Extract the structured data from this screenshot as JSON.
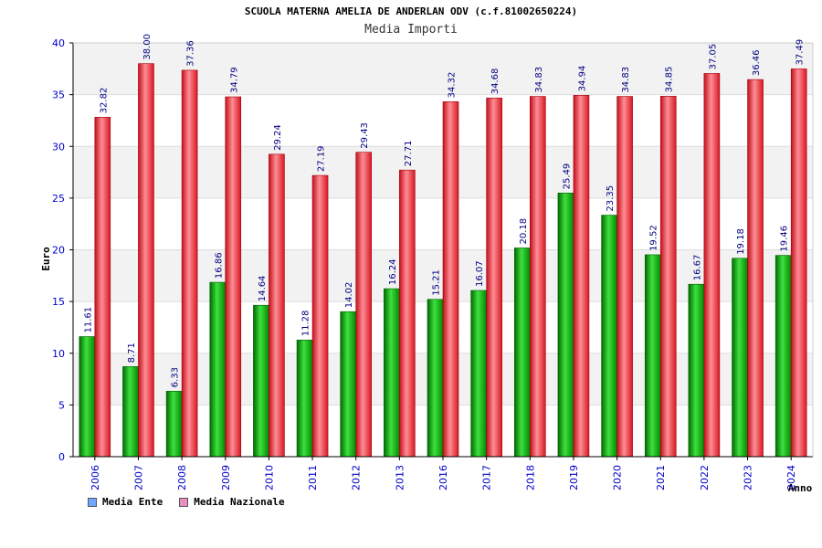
{
  "chart_data": {
    "type": "bar",
    "title": "SCUOLA MATERNA AMELIA DE ANDERLAN ODV (c.f.81002650224)",
    "subtitle": "Media Importi",
    "ylabel": "Euro",
    "xlabel": "Anno",
    "ylim": [
      0,
      40
    ],
    "yticks": [
      0,
      5,
      10,
      15,
      20,
      25,
      30,
      35,
      40
    ],
    "grid": true,
    "categories": [
      "2006",
      "2007",
      "2008",
      "2009",
      "2010",
      "2011",
      "2012",
      "2013",
      "2016",
      "2017",
      "2018",
      "2019",
      "2020",
      "2021",
      "2022",
      "2023",
      "2024"
    ],
    "series": [
      {
        "name": "Media Ente",
        "color": "#00b000",
        "legend_color": "#6fa8ff",
        "values": [
          11.61,
          8.71,
          6.33,
          16.86,
          14.64,
          11.28,
          14.02,
          16.24,
          15.21,
          16.07,
          20.18,
          25.49,
          23.35,
          19.52,
          16.67,
          19.18,
          19.46
        ],
        "labels": [
          "11.61",
          "8.71",
          "6.33",
          "16.86",
          "14.64",
          "11.28",
          "14.02",
          "16.24",
          "15.21",
          "16.07",
          "20.18",
          "25.49",
          "23.35",
          "19.52",
          "16.67",
          "19.18",
          "19.46"
        ]
      },
      {
        "name": "Media Nazionale",
        "color": "#e8202a",
        "legend_color": "#e88fc0",
        "values": [
          32.82,
          38.0,
          37.36,
          34.79,
          29.24,
          27.19,
          29.43,
          27.71,
          34.32,
          34.68,
          34.83,
          34.94,
          34.83,
          34.85,
          37.05,
          36.46,
          37.49
        ],
        "labels": [
          "32.82",
          "38.00",
          "37.36",
          "34.79",
          "29.24",
          "27.19",
          "29.43",
          "27.71",
          "34.32",
          "34.68",
          "34.83",
          "34.94",
          "34.83",
          "34.85",
          "37.05",
          "36.46",
          "37.49"
        ]
      }
    ],
    "legend_position": "bottom-left"
  }
}
